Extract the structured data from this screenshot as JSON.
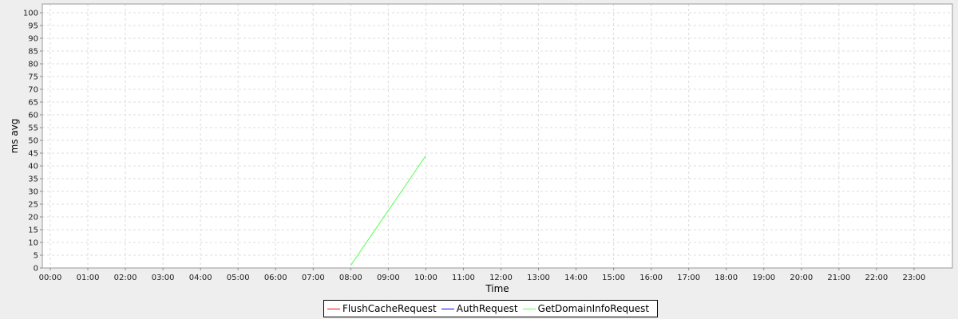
{
  "chart_data": {
    "type": "line",
    "xlabel": "Time",
    "ylabel": "ms avg",
    "ylim": [
      0,
      100
    ],
    "yticks": [
      0,
      5,
      10,
      15,
      20,
      25,
      30,
      35,
      40,
      45,
      50,
      55,
      60,
      65,
      70,
      75,
      80,
      85,
      90,
      95,
      100
    ],
    "xticks": [
      "00:00",
      "01:00",
      "02:00",
      "03:00",
      "04:00",
      "05:00",
      "06:00",
      "07:00",
      "08:00",
      "09:00",
      "10:00",
      "11:00",
      "12:00",
      "13:00",
      "14:00",
      "15:00",
      "16:00",
      "17:00",
      "18:00",
      "19:00",
      "20:00",
      "21:00",
      "22:00",
      "23:00"
    ],
    "grid": true,
    "legend_position": "bottom",
    "series": [
      {
        "name": "FlushCacheRequest",
        "color": "#ff0000",
        "points": []
      },
      {
        "name": "AuthRequest",
        "color": "#0000ff",
        "points": []
      },
      {
        "name": "GetDomainInfoRequest",
        "color": "#55ff55",
        "points": [
          {
            "x": "08:00",
            "y": 1
          },
          {
            "x": "10:00",
            "y": 44
          }
        ]
      }
    ]
  }
}
